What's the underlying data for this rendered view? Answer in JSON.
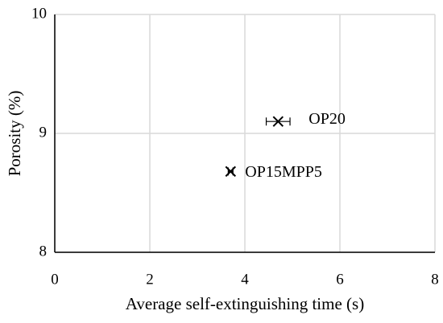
{
  "chart_data": {
    "type": "scatter",
    "x_label": "Average self-extinguishing time (s)",
    "y_label": "Porosity (%)",
    "x": [
      4.7,
      3.7
    ],
    "y": [
      9.1,
      8.68
    ],
    "xerr": [
      0.25,
      0.05
    ],
    "point_labels": [
      "OP20",
      "OP15MPP5"
    ],
    "color": "#000000",
    "xlim": [
      0,
      8
    ],
    "xticks": [
      0,
      2,
      4,
      6,
      8
    ],
    "ylim": [
      8,
      10
    ],
    "yticks": [
      8,
      9,
      10
    ],
    "grid": true
  }
}
